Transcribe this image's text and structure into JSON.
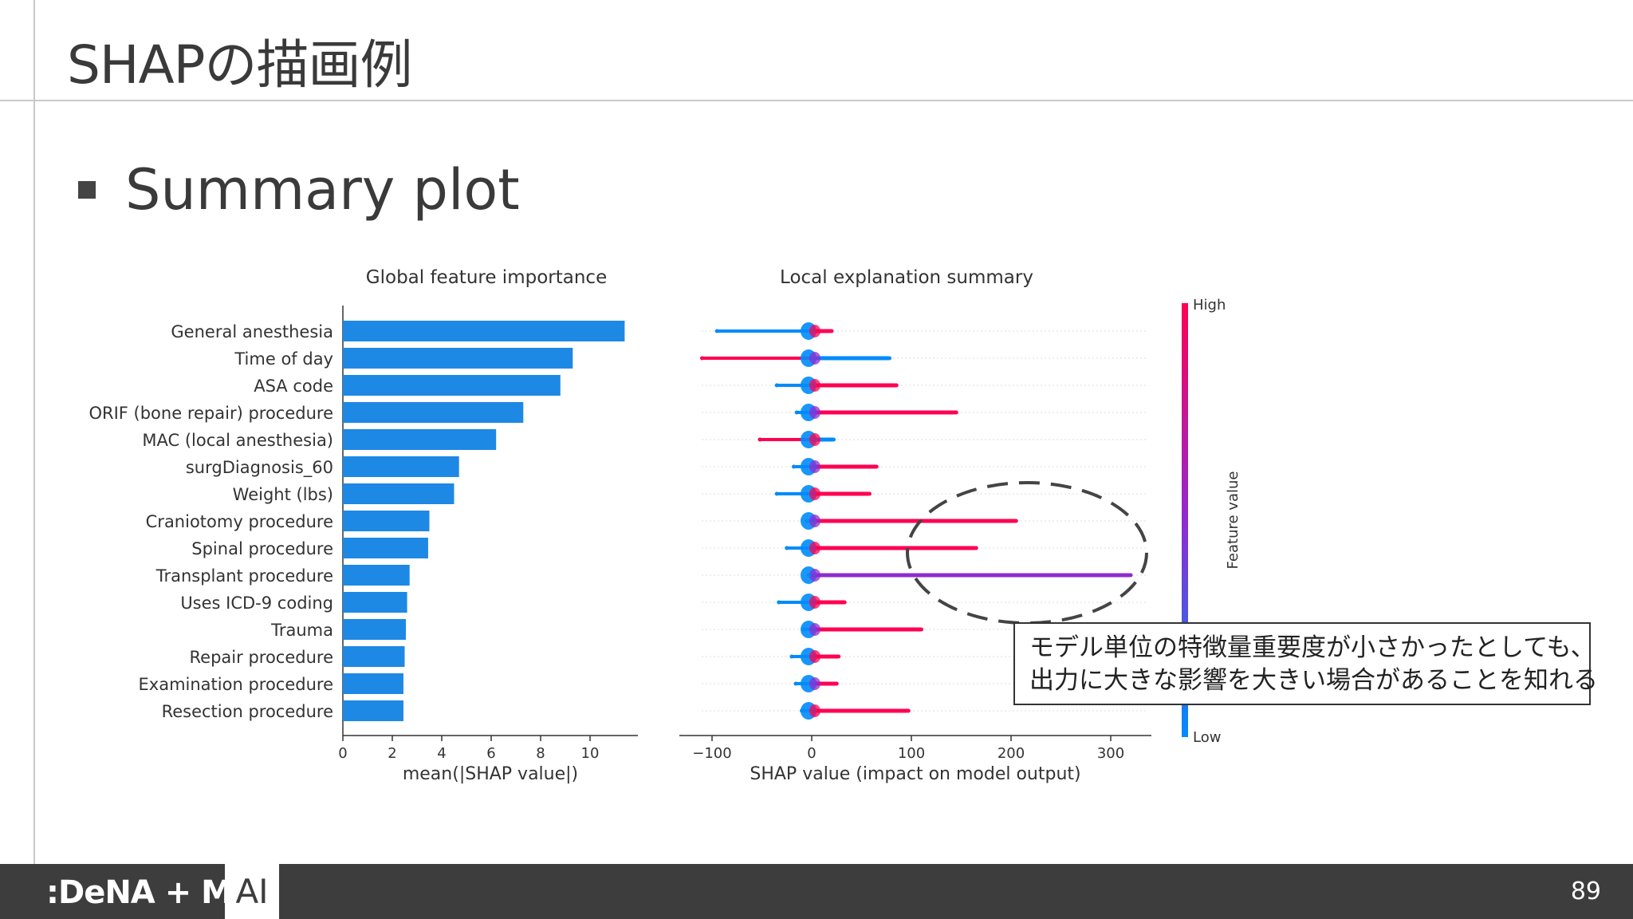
{
  "slide": {
    "title": "SHAPの描画例",
    "bullet": "Summary plot",
    "callout_lines": [
      "モデル単位の特徴量重要度が小さかったとしても、",
      "出力に大きな影響を大きい場合があることを知れる"
    ],
    "page_number": "89"
  },
  "footer": {
    "brand": ":DeNA + MoT",
    "ai_label": "AI"
  },
  "colors": {
    "bar": "#1e88e5",
    "high": "#ff0052",
    "low": "#008bfb",
    "purple": "#8e2bd0"
  },
  "chart_data": [
    {
      "type": "bar",
      "orientation": "horizontal",
      "title": "Global feature importance",
      "xlabel": "mean(|SHAP value|)",
      "xlim": [
        0,
        12
      ],
      "xticks": [
        "0",
        "2",
        "4",
        "6",
        "8",
        "10"
      ],
      "categories": [
        "General anesthesia",
        "Time of day",
        "ASA code",
        "ORIF (bone repair) procedure",
        "MAC (local anesthesia)",
        "surgDiagnosis_60",
        "Weight (lbs)",
        "Craniotomy procedure",
        "Spinal procedure",
        "Transplant procedure",
        "Uses ICD-9 coding",
        "Trauma",
        "Repair procedure",
        "Examination procedure",
        "Resection procedure"
      ],
      "values": [
        11.4,
        9.3,
        8.8,
        7.3,
        6.2,
        4.7,
        4.5,
        3.5,
        3.45,
        2.7,
        2.6,
        2.55,
        2.5,
        2.45,
        2.45
      ]
    },
    {
      "type": "scatter",
      "title": "Local explanation summary",
      "xlabel": "SHAP value (impact on model output)",
      "xlim": [
        -130,
        340
      ],
      "xticks": [
        "−100",
        "0",
        "100",
        "200",
        "300"
      ],
      "colorbar": {
        "label": "Feature value",
        "high": "High",
        "low": "Low"
      },
      "rows": [
        {
          "feature": "General anesthesia",
          "min": -95,
          "max": 20,
          "low_side": "negative",
          "high_side": "positive"
        },
        {
          "feature": "Time of day",
          "min": -110,
          "max": 78,
          "low_side": "positive",
          "high_side": "negative"
        },
        {
          "feature": "ASA code",
          "min": -35,
          "max": 85,
          "low_side": "negative",
          "high_side": "positive"
        },
        {
          "feature": "ORIF (bone repair) procedure",
          "min": -15,
          "max": 145,
          "low_side": "negative",
          "high_side": "positive"
        },
        {
          "feature": "MAC (local anesthesia)",
          "min": -52,
          "max": 22,
          "low_side": "positive",
          "high_side": "negative"
        },
        {
          "feature": "surgDiagnosis_60",
          "min": -18,
          "max": 65,
          "low_side": "negative",
          "high_side": "positive"
        },
        {
          "feature": "Weight (lbs)",
          "min": -35,
          "max": 58,
          "low_side": "negative",
          "high_side": "positive"
        },
        {
          "feature": "Craniotomy procedure",
          "min": -5,
          "max": 205,
          "low_side": "negative",
          "high_side": "positive"
        },
        {
          "feature": "Spinal procedure",
          "min": -25,
          "max": 165,
          "low_side": "negative",
          "high_side": "positive"
        },
        {
          "feature": "Transplant procedure",
          "min": -3,
          "max": 320,
          "low_side": "negative",
          "high_side": "purple"
        },
        {
          "feature": "Uses ICD-9 coding",
          "min": -33,
          "max": 33,
          "low_side": "negative",
          "high_side": "positive"
        },
        {
          "feature": "Trauma",
          "min": -8,
          "max": 110,
          "low_side": "negative",
          "high_side": "positive"
        },
        {
          "feature": "Repair procedure",
          "min": -20,
          "max": 27,
          "low_side": "negative",
          "high_side": "positive"
        },
        {
          "feature": "Examination procedure",
          "min": -16,
          "max": 25,
          "low_side": "negative",
          "high_side": "positive"
        },
        {
          "feature": "Resection procedure",
          "min": -10,
          "max": 97,
          "low_side": "negative",
          "high_side": "positive"
        }
      ]
    }
  ]
}
